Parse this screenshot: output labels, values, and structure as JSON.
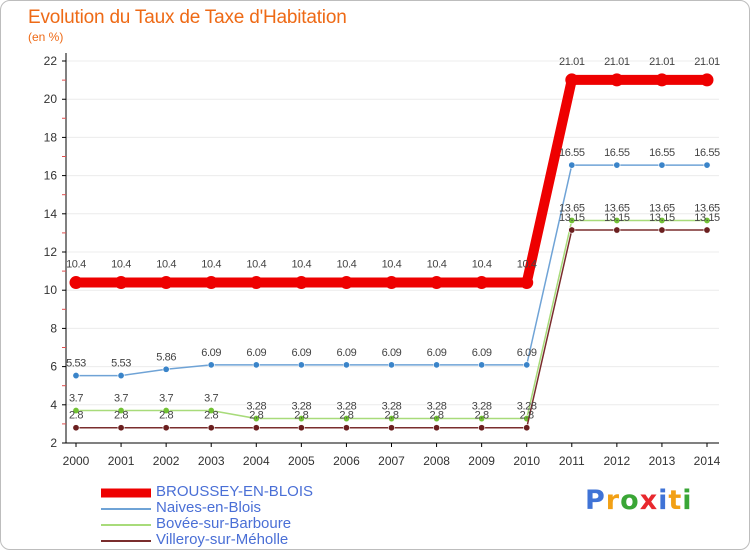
{
  "colors": {
    "title": "#ee6a16",
    "axis": "#000000",
    "grid": "#ececec",
    "tick_text": "#333333",
    "label_text": "#444444",
    "legend_text": "#4a6fd6"
  },
  "brand": {
    "text": "Prox i ti",
    "letters": [
      {
        "ch": "P",
        "color": "#3f73d6"
      },
      {
        "ch": "r",
        "color": "#f2a015"
      },
      {
        "ch": "o",
        "color": "#3aa636"
      },
      {
        "ch": "x",
        "color": "#e8282e"
      },
      {
        "ch": "i",
        "color": "#3f73d6"
      },
      {
        "ch": "t",
        "color": "#f2a015"
      },
      {
        "ch": "i",
        "color": "#3aa636"
      }
    ]
  },
  "chart_data": {
    "type": "line",
    "title": "Evolution du Taux de Taxe d'Habitation",
    "ylabel": "(en %)",
    "xlabel": "",
    "ylim": [
      2,
      22
    ],
    "yticks": [
      2,
      4,
      6,
      8,
      10,
      12,
      14,
      16,
      18,
      20,
      22
    ],
    "grid": false,
    "legend_position": "bottom-left",
    "x": [
      "2000",
      "2001",
      "2002",
      "2003",
      "2004",
      "2005",
      "2006",
      "2007",
      "2008",
      "2009",
      "2010",
      "2011",
      "2012",
      "2013",
      "2014"
    ],
    "series": [
      {
        "name": "BROUSSEY-EN-BLOIS",
        "color": "#ee0000",
        "marker_color": "#ee0000",
        "values": [
          10.4,
          10.4,
          10.4,
          10.4,
          10.4,
          10.4,
          10.4,
          10.4,
          10.4,
          10.4,
          10.4,
          21.01,
          21.01,
          21.01,
          21.01
        ],
        "labels": [
          "10.4",
          "10.4",
          "10.4",
          "10.4",
          "10.4",
          "10.4",
          "10.4",
          "10.4",
          "10.4",
          "10.4",
          "10.4",
          "21.01",
          "21.01",
          "21.01",
          "21.01"
        ],
        "emphasis": true
      },
      {
        "name": "Naives-en-Blois",
        "color": "#6fa3d6",
        "marker_color": "#3a84c9",
        "values": [
          5.53,
          5.53,
          5.86,
          6.09,
          6.09,
          6.09,
          6.09,
          6.09,
          6.09,
          6.09,
          6.09,
          16.55,
          16.55,
          16.55,
          16.55
        ],
        "labels": [
          "5.53",
          "5.53",
          "5.86",
          "6.09",
          "6.09",
          "6.09",
          "6.09",
          "6.09",
          "6.09",
          "6.09",
          "6.09",
          "16.55",
          "16.55",
          "16.55",
          "16.55"
        ]
      },
      {
        "name": "Bovée-sur-Barboure",
        "color": "#a8db7a",
        "marker_color": "#72c234",
        "values": [
          3.7,
          3.7,
          3.7,
          3.7,
          3.28,
          3.28,
          3.28,
          3.28,
          3.28,
          3.28,
          3.28,
          13.65,
          13.65,
          13.65,
          13.65
        ],
        "labels": [
          "3.7",
          "3.7",
          "3.7",
          "3.7",
          "3.28",
          "3.28",
          "3.28",
          "3.28",
          "3.28",
          "3.28",
          "3.28",
          "13.65",
          "13.65",
          "13.65",
          "13.65"
        ]
      },
      {
        "name": "Villeroy-sur-Méholle",
        "color": "#7a2d2d",
        "marker_color": "#6b1f1f",
        "values": [
          2.8,
          2.8,
          2.8,
          2.8,
          2.8,
          2.8,
          2.8,
          2.8,
          2.8,
          2.8,
          2.8,
          13.15,
          13.15,
          13.15,
          13.15
        ],
        "labels": [
          "2.8",
          "2.8",
          "2.8",
          "2.8",
          "2.8",
          "2.8",
          "2.8",
          "2.8",
          "2.8",
          "2.8",
          "2.8",
          "13.15",
          "13.15",
          "13.15",
          "13.15"
        ]
      }
    ]
  }
}
